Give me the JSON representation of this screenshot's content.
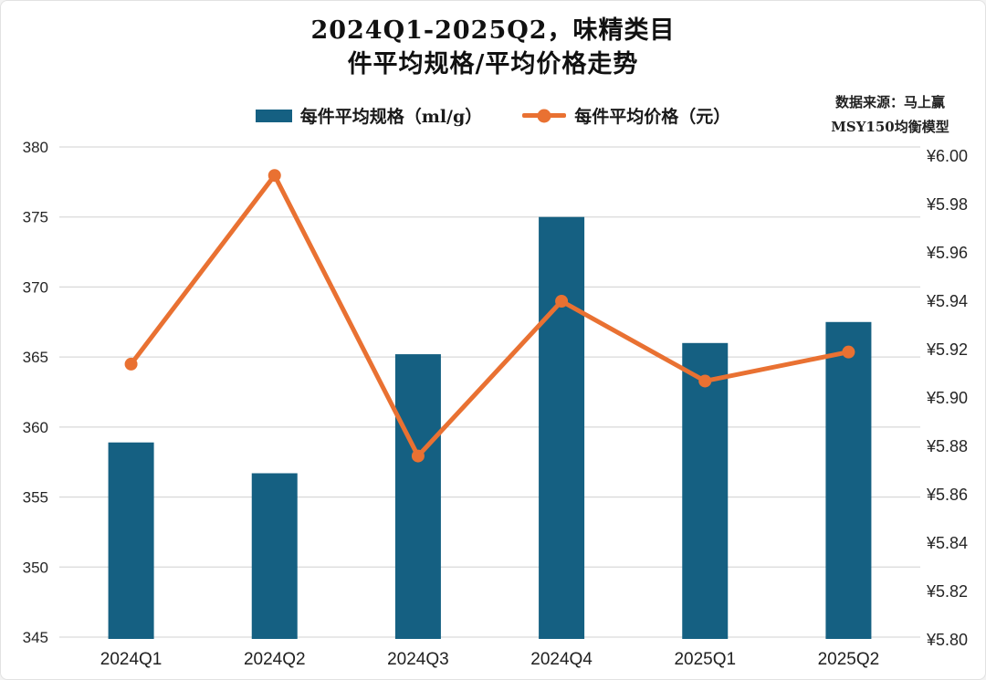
{
  "title": {
    "line1": "2024Q1-2025Q2，味精类目",
    "line2": "件平均规格/平均价格走势"
  },
  "source": {
    "line1": "数据来源：马上赢",
    "line2": "MSY150均衡模型"
  },
  "colors": {
    "bar": "#156082",
    "line": "#E97132",
    "grid": "#D9D9D9",
    "tick_text": "#262626",
    "category_text": "#1f1f1f"
  },
  "chart_data": {
    "type": "combo",
    "title": "2024Q1-2025Q2，味精类目件平均规格/平均价格走势",
    "categories": [
      "2024Q1",
      "2024Q2",
      "2024Q3",
      "2024Q4",
      "2025Q1",
      "2025Q2"
    ],
    "series": [
      {
        "name": "每件平均规格（ml/g）",
        "type": "bar",
        "axis": "left",
        "color": "#156082",
        "values": [
          358.9,
          356.7,
          365.2,
          375.0,
          366.0,
          367.5
        ]
      },
      {
        "name": "每件平均价格（元）",
        "type": "line",
        "axis": "right",
        "color": "#E97132",
        "values": [
          5.914,
          5.992,
          5.876,
          5.94,
          5.907,
          5.919
        ]
      }
    ],
    "left_axis": {
      "label": "每件平均规格（ml/g）",
      "min": 345,
      "max": 380,
      "step": 5,
      "ticks": [
        "380",
        "375",
        "370",
        "365",
        "360",
        "355",
        "350",
        "345"
      ]
    },
    "right_axis": {
      "label": "每件平均价格（元）",
      "min": 5.8,
      "max": 6.0,
      "step": 0.02,
      "ticks": [
        "¥6.00",
        "¥5.98",
        "¥5.96",
        "¥5.94",
        "¥5.92",
        "¥5.90",
        "¥5.88",
        "¥5.86",
        "¥5.84",
        "¥5.82",
        "¥5.80"
      ]
    },
    "grid": true,
    "legend_position": "top"
  }
}
